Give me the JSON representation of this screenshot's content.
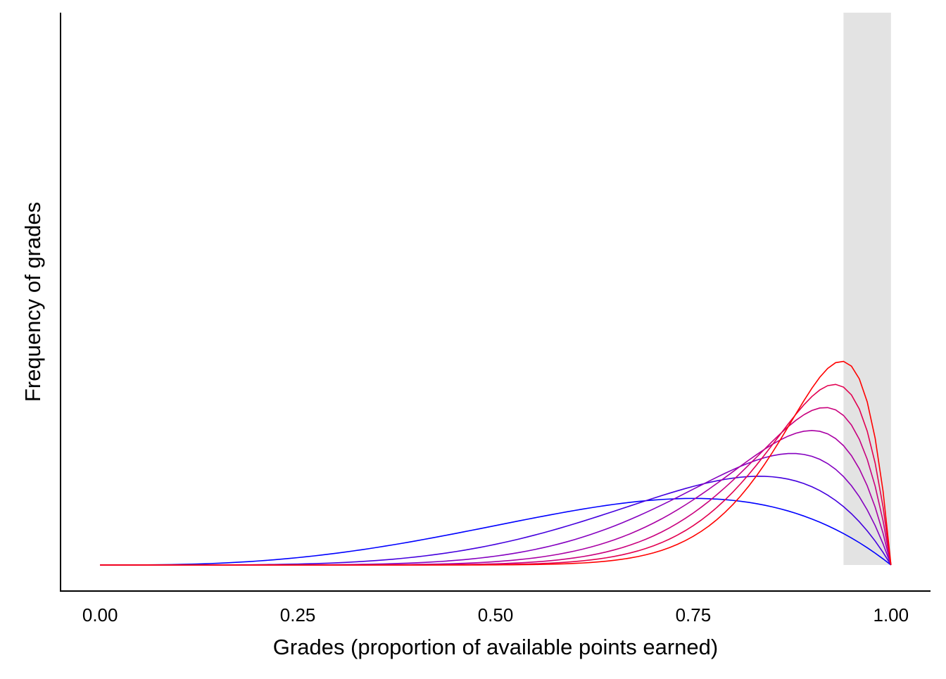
{
  "chart_data": {
    "type": "line",
    "title": "",
    "xlabel": "Grades (proportion of available points earned)",
    "ylabel": "Frequency of grades",
    "xlim": [
      -0.05,
      1.05
    ],
    "ylim": [
      0,
      17.5
    ],
    "x_ticks": [
      "0.00",
      "0.25",
      "0.50",
      "0.75",
      "1.00"
    ],
    "x_tick_values": [
      0,
      0.25,
      0.5,
      0.75,
      1.0
    ],
    "y_ticks_shown": false,
    "grid": false,
    "legend": "none",
    "shaded_region": {
      "x_from": 0.94,
      "x_to": 1.0,
      "color": "#e3e3e3"
    },
    "series": [
      {
        "alpha": 4,
        "beta": 2,
        "color": "#0000ff"
      },
      {
        "alpha": 6,
        "beta": 2,
        "color": "#4400de"
      },
      {
        "alpha": 8,
        "beta": 2,
        "color": "#8400c0"
      },
      {
        "alpha": 10,
        "beta": 2,
        "color": "#a900a4"
      },
      {
        "alpha": 12,
        "beta": 2,
        "color": "#c9007d"
      },
      {
        "alpha": 14,
        "beta": 2,
        "color": "#e20050"
      },
      {
        "alpha": 16,
        "beta": 2,
        "color": "#ff0000"
      }
    ],
    "curve_formula": "y = a*(a+1)*x^(a-1)*(1-x)"
  }
}
